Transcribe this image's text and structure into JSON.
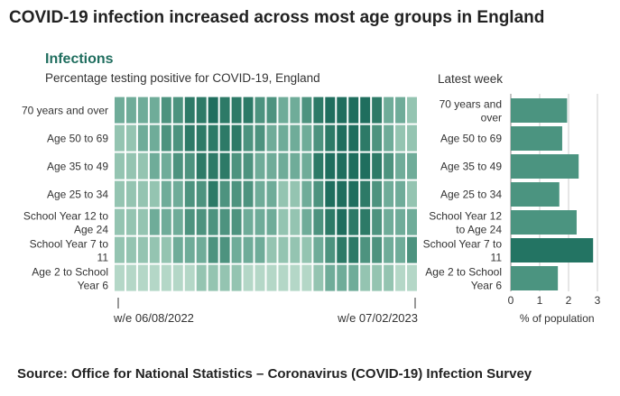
{
  "header": {
    "title": "COVID-19 infection increased across most age groups in England"
  },
  "panel": {
    "subtitle": "Infections",
    "caption": "Percentage testing positive for COVID-19, England",
    "latest_title": "Latest week"
  },
  "source": "Source: Office for National Statistics – Coronavirus (COVID-19) Infection Survey",
  "colors": {
    "scale": [
      "#b4d7c7",
      "#94c4b1",
      "#6fac99",
      "#4d937f",
      "#2d7a67",
      "#1f6e5e"
    ],
    "bar": "#4b9480",
    "bar_highlight": "#237463",
    "grid": "#cccccc"
  },
  "chart_data": [
    {
      "type": "heatmap",
      "title": "Infections",
      "subtitle": "Percentage testing positive for COVID-19, England",
      "rows": [
        {
          "label_lines": [
            "70 years and over"
          ],
          "values": [
            2.1,
            2.1,
            2.2,
            2.3,
            2.5,
            2.6,
            2.8,
            2.9,
            3.0,
            2.9,
            2.8,
            2.7,
            2.5,
            2.4,
            2.3,
            2.3,
            2.4,
            2.7,
            3.0,
            3.2,
            3.1,
            3.0,
            2.7,
            2.3,
            2.1,
            2.0
          ]
        },
        {
          "label_lines": [
            "Age 50 to 69"
          ],
          "values": [
            2.0,
            2.0,
            2.1,
            2.2,
            2.4,
            2.5,
            2.7,
            2.8,
            2.9,
            2.8,
            2.7,
            2.6,
            2.4,
            2.3,
            2.2,
            2.2,
            2.3,
            2.6,
            2.9,
            3.1,
            3.0,
            2.9,
            2.6,
            2.2,
            2.0,
            1.9
          ]
        },
        {
          "label_lines": [
            "Age 35 to 49"
          ],
          "values": [
            1.9,
            1.9,
            2.0,
            2.1,
            2.3,
            2.4,
            2.6,
            2.7,
            2.8,
            2.7,
            2.6,
            2.5,
            2.3,
            2.2,
            2.1,
            2.1,
            2.3,
            2.7,
            3.1,
            3.3,
            3.2,
            3.0,
            2.7,
            2.4,
            2.2,
            2.1
          ]
        },
        {
          "label_lines": [
            "Age 25 to 34"
          ],
          "values": [
            1.8,
            1.8,
            1.9,
            2.0,
            2.2,
            2.3,
            2.5,
            2.6,
            2.7,
            2.6,
            2.5,
            2.4,
            2.2,
            2.1,
            2.0,
            2.0,
            2.2,
            2.6,
            3.0,
            3.2,
            3.1,
            2.9,
            2.6,
            2.3,
            2.1,
            2.0
          ]
        },
        {
          "label_lines": [
            "School Year 12 to",
            "Age 24"
          ],
          "values": [
            1.9,
            1.9,
            2.0,
            2.1,
            2.2,
            2.3,
            2.4,
            2.5,
            2.6,
            2.5,
            2.4,
            2.3,
            2.2,
            2.1,
            2.0,
            2.0,
            2.2,
            2.5,
            2.8,
            3.0,
            2.9,
            2.8,
            2.5,
            2.3,
            2.2,
            2.1
          ]
        },
        {
          "label_lines": [
            "School Year 7 to",
            "11"
          ],
          "values": [
            1.8,
            1.8,
            1.9,
            1.9,
            2.0,
            2.1,
            2.2,
            2.3,
            2.4,
            2.4,
            2.3,
            2.2,
            2.1,
            2.0,
            1.9,
            1.9,
            2.0,
            2.3,
            2.6,
            2.8,
            2.7,
            2.6,
            2.4,
            2.3,
            2.3,
            2.4
          ]
        },
        {
          "label_lines": [
            "Age 2 to School",
            "Year 6"
          ],
          "values": [
            1.5,
            1.5,
            1.5,
            1.6,
            1.6,
            1.7,
            1.7,
            1.8,
            1.8,
            1.8,
            1.8,
            1.7,
            1.7,
            1.6,
            1.6,
            1.6,
            1.7,
            1.9,
            2.1,
            2.2,
            2.1,
            2.0,
            1.9,
            1.8,
            1.7,
            1.7
          ]
        }
      ],
      "x_start_label": "w/e 06/08/2022",
      "x_end_label": "w/e 07/02/2023"
    },
    {
      "type": "bar",
      "orientation": "horizontal",
      "title": "Latest week",
      "categories": [
        [
          "70 years and",
          "over"
        ],
        [
          "Age 50 to 69"
        ],
        [
          "Age 35 to 49"
        ],
        [
          "Age 25 to 34"
        ],
        [
          "School Year 12",
          "to Age 24"
        ],
        [
          "School Year 7 to",
          "11"
        ],
        [
          "Age 2 to School",
          "Year 6"
        ]
      ],
      "values": [
        1.95,
        1.78,
        2.35,
        1.68,
        2.28,
        2.85,
        1.63
      ],
      "highlight_index": 5,
      "xlabel": "% of population",
      "xlim": [
        0,
        3
      ],
      "xticks": [
        "0",
        "1",
        "2",
        "3"
      ],
      "grid": true
    }
  ]
}
